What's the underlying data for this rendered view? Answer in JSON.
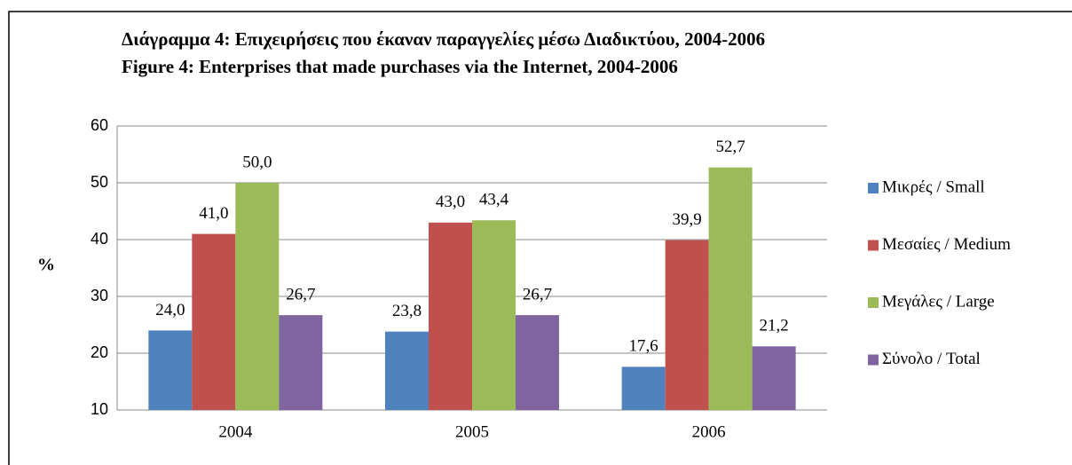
{
  "chart_data": {
    "type": "bar",
    "title": "Διάγραμμα 4: Επιχειρήσεις που έκαναν παραγγελίες μέσω Διαδικτύου, 2004-2006",
    "subtitle": "Figure 4: Enterprises that made purchases via the Internet, 2004-2006",
    "y_label": "%",
    "categories": [
      "2004",
      "2005",
      "2006"
    ],
    "series": [
      {
        "name": "Μικρές / Small",
        "color": "#4f81bd",
        "values": [
          24.0,
          23.8,
          17.6
        ],
        "value_labels": [
          "24,0",
          "23,8",
          "17,6"
        ]
      },
      {
        "name": "Μεσαίες / Medium",
        "color": "#c0504d",
        "values": [
          41.0,
          43.0,
          39.9
        ],
        "value_labels": [
          "41,0",
          "43,0",
          "39,9"
        ]
      },
      {
        "name": "Μεγάλες / Large",
        "color": "#9bbb59",
        "values": [
          50.0,
          43.4,
          52.7
        ],
        "value_labels": [
          "50,0",
          "43,4",
          "52,7"
        ]
      },
      {
        "name": "Σύνολο / Total",
        "color": "#8064a2",
        "values": [
          26.7,
          26.7,
          21.2
        ],
        "value_labels": [
          "26,7",
          "26,7",
          "21,2"
        ]
      }
    ],
    "ylim": [
      10,
      60
    ],
    "yticks": [
      10,
      20,
      30,
      40,
      50,
      60
    ],
    "grid": true,
    "legend": "right"
  }
}
